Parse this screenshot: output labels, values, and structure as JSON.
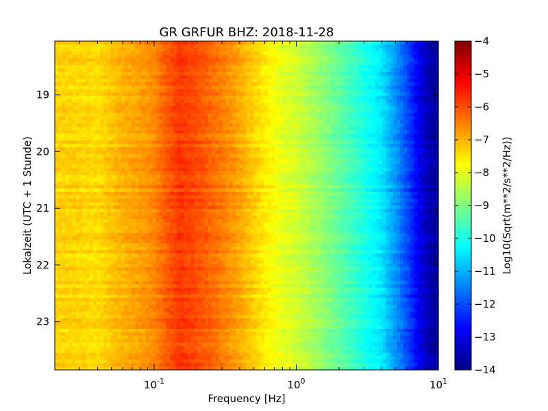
{
  "chart_data": {
    "type": "heatmap",
    "title": "GR GRFUR BHZ: 2018-11-28",
    "xlabel": "Frequency [Hz]",
    "ylabel": "Lokalzeit (UTC + 1 Stunde)",
    "x_scale": "log",
    "xlim": [
      0.02,
      10
    ],
    "ylim": [
      18.05,
      23.85
    ],
    "y_inverted": true,
    "x_ticks": [
      {
        "value": 0.1,
        "base": "10",
        "exp": "-1"
      },
      {
        "value": 1,
        "base": "10",
        "exp": "0"
      },
      {
        "value": 10,
        "base": "10",
        "exp": "1"
      }
    ],
    "y_ticks": [
      {
        "value": 19,
        "label": "19"
      },
      {
        "value": 20,
        "label": "20"
      },
      {
        "value": 21,
        "label": "21"
      },
      {
        "value": 22,
        "label": "22"
      },
      {
        "value": 23,
        "label": "23"
      }
    ],
    "colorbar": {
      "label": "Log10(Sqrt(m**2/s**2/Hz))",
      "range": [
        -14,
        -4
      ],
      "colormap": "jet",
      "ticks": [
        {
          "value": -4,
          "label": "−4"
        },
        {
          "value": -5,
          "label": "−5"
        },
        {
          "value": -6,
          "label": "−6"
        },
        {
          "value": -7,
          "label": "−7"
        },
        {
          "value": -8,
          "label": "−8"
        },
        {
          "value": -9,
          "label": "−9"
        },
        {
          "value": -10,
          "label": "−10"
        },
        {
          "value": -11,
          "label": "−11"
        },
        {
          "value": -12,
          "label": "−12"
        },
        {
          "value": -13,
          "label": "−13"
        },
        {
          "value": -14,
          "label": "−14"
        }
      ]
    },
    "spectrum_profile": [
      {
        "freq": 0.02,
        "value": -7.3
      },
      {
        "freq": 0.04,
        "value": -7.4
      },
      {
        "freq": 0.06,
        "value": -7.0
      },
      {
        "freq": 0.08,
        "value": -6.8
      },
      {
        "freq": 0.1,
        "value": -6.6
      },
      {
        "freq": 0.12,
        "value": -6.2
      },
      {
        "freq": 0.15,
        "value": -5.8
      },
      {
        "freq": 0.2,
        "value": -6.0
      },
      {
        "freq": 0.3,
        "value": -6.5
      },
      {
        "freq": 0.4,
        "value": -6.9
      },
      {
        "freq": 0.6,
        "value": -7.6
      },
      {
        "freq": 0.8,
        "value": -8.0
      },
      {
        "freq": 1.0,
        "value": -8.2
      },
      {
        "freq": 1.5,
        "value": -8.8
      },
      {
        "freq": 2.0,
        "value": -9.3
      },
      {
        "freq": 3.0,
        "value": -10.0
      },
      {
        "freq": 4.0,
        "value": -10.5
      },
      {
        "freq": 5.0,
        "value": -11.3
      },
      {
        "freq": 6.0,
        "value": -12.0
      },
      {
        "freq": 7.0,
        "value": -12.7
      },
      {
        "freq": 8.0,
        "value": -13.3
      },
      {
        "freq": 9.0,
        "value": -13.6
      },
      {
        "freq": 10.0,
        "value": -13.8
      }
    ],
    "grid": false
  }
}
